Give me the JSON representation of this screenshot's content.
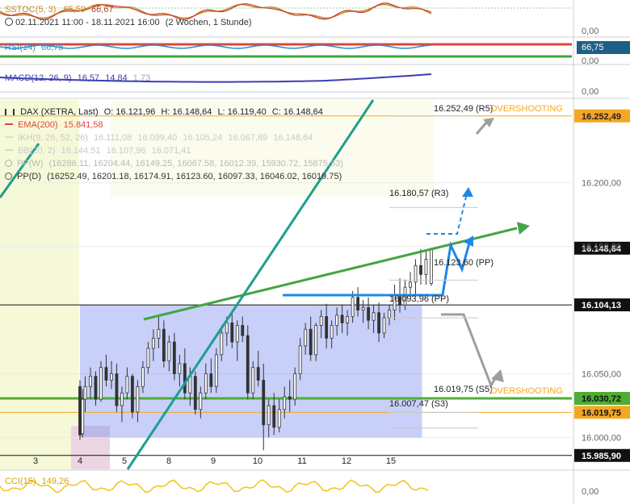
{
  "panels": {
    "sstoc": {
      "label": "SSTOC(5, 3)",
      "v1": "65,59",
      "v2": "66,67",
      "zero": "0,00",
      "line1_color": "#c98a2b",
      "line2_color": "#c0392b"
    },
    "period": {
      "text": "02.11.2021 11:00 - 18.11.2021 16:00",
      "interval": "(2 Wochen, 1 Stunde)"
    },
    "rsi": {
      "label": "RSI(14)",
      "value": "66,75",
      "badge": "66,75",
      "tick": "0,00",
      "color": "#2a8fc7",
      "upper_color": "#e0463a",
      "lower_color": "#3aa83a"
    },
    "macd": {
      "label": "MACD(12, 26, 9)",
      "v1": "16,57",
      "v2": "14,84",
      "v3": "1,73",
      "tick": "0,00",
      "color": "#3d3db3"
    },
    "cci": {
      "label": "CCI(15)",
      "value": "149,26",
      "tick": "0,00",
      "color": "#f0c419"
    }
  },
  "legend": {
    "instrument": "DAX (XETRA, Last)",
    "o": "O: 16.121,96",
    "h": "H: 16.148,64",
    "l": "L: 16.119,40",
    "c": "C: 16.148,64",
    "ema": "EMA(200)",
    "ema_val": "15.841,58",
    "ema_color": "#e0463a",
    "ikh": "IKH(9, 26, 52, 26)",
    "ikh_vals": [
      "16.111,08",
      "16.099,40",
      "16.105,24",
      "16.067,89",
      "16.148,64"
    ],
    "bb": "BB(20, 2)",
    "bb_vals": [
      "16.144,51",
      "16.107,96",
      "16.071,41"
    ],
    "ppw": "PP(W)",
    "ppw_vals": "(16286.11, 16204.44, 16149.25, 16067.58, 16012.39, 15930.72, 15875.53)",
    "ppd": "PP(D)",
    "ppd_vals": "(16252.49, 16201.18, 16174.91, 16123.60, 16097.33, 16046.02, 16019.75)"
  },
  "chart_data": {
    "type": "line",
    "title": "DAX (XETRA, Last)",
    "xlabel": "",
    "ylabel": "",
    "x_ticks": [
      "3",
      "4",
      "5",
      "8",
      "9",
      "10",
      "11",
      "12",
      "15"
    ],
    "y_ticks": [
      "16.200,00",
      "16.150,00",
      "16.050,00",
      "16.000,00"
    ],
    "ylim": [
      15975,
      16265
    ],
    "price_badges": [
      {
        "label": "16.252,49",
        "value": 16252.49,
        "bg": "#f5a623",
        "fg": "#222222"
      },
      {
        "label": "16.148,64",
        "value": 16148.64,
        "bg": "#111111",
        "fg": "#ffffff"
      },
      {
        "label": "16.104,13",
        "value": 16104.13,
        "bg": "#111111",
        "fg": "#ffffff"
      },
      {
        "label": "16.030,72",
        "value": 16030.72,
        "bg": "#4fad35",
        "fg": "#111111"
      },
      {
        "label": "16.019,75",
        "value": 16019.75,
        "bg": "#f5a623",
        "fg": "#111111"
      },
      {
        "label": "15.985,90",
        "value": 15985.9,
        "bg": "#111111",
        "fg": "#ffffff"
      }
    ],
    "pivot_levels": [
      {
        "label": "16.252,49 (R5)",
        "value": 16252.49
      },
      {
        "label": "16.180,57 (R3)",
        "value": 16180.57
      },
      {
        "label": "16.123,60 (PP)",
        "value": 16123.6
      },
      {
        "label": "16.093,96 (PP)",
        "value": 16093.96
      },
      {
        "label": "16.019,75 (S5)",
        "value": 16019.75
      },
      {
        "label": "16.007,47 (S3)",
        "value": 16007.47
      }
    ],
    "annotations": [
      "OVERSHOOTING",
      "OVERSHOOTING"
    ],
    "trend_lines": [
      {
        "name": "",
        "from": [
          4.5,
          16120
        ],
        "to": [
          16.3,
          16170
        ]
      },
      {
        "name": "",
        "from": [
          5.0,
          15965
        ],
        "to": [
          11.7,
          16265
        ]
      }
    ],
    "horizontal_lines": [
      {
        "value": 16104.13,
        "color": "#111111"
      },
      {
        "value": 16030.72,
        "color": "#4fad35"
      },
      {
        "value": 16019.75,
        "color": "#f5a623"
      },
      {
        "value": 15985.9,
        "color": "#111111"
      },
      {
        "value": 16252.49,
        "color": "#f5a623"
      }
    ],
    "rectangle": {
      "x_from": 4,
      "x_to": 15.7,
      "y_from": 16000,
      "y_to": 16104.13,
      "color": "#7b8ff0"
    },
    "candles": [
      [
        4.0,
        16040,
        16045,
        15998,
        16002
      ],
      [
        4.05,
        16003,
        16038,
        16000,
        16030
      ],
      [
        4.1,
        16030,
        16048,
        16020,
        16040
      ],
      [
        4.2,
        16040,
        16055,
        16030,
        16048
      ],
      [
        4.3,
        16048,
        16052,
        16025,
        16030
      ],
      [
        4.4,
        16030,
        16060,
        16028,
        16055
      ],
      [
        4.5,
        16055,
        16065,
        16040,
        16045
      ],
      [
        4.6,
        16045,
        16060,
        16038,
        16050
      ],
      [
        4.7,
        16050,
        16058,
        16020,
        16025
      ],
      [
        4.8,
        16025,
        16040,
        16012,
        16035
      ],
      [
        4.9,
        16035,
        16055,
        16030,
        16048
      ],
      [
        5.0,
        16048,
        16050,
        16015,
        16020
      ],
      [
        5.1,
        16020,
        16045,
        16012,
        16040
      ],
      [
        5.2,
        16040,
        16060,
        16035,
        16055
      ],
      [
        5.3,
        16055,
        16075,
        16050,
        16070
      ],
      [
        5.4,
        16070,
        16085,
        16060,
        16078
      ],
      [
        5.5,
        16078,
        16095,
        16070,
        16085
      ],
      [
        5.6,
        16085,
        16092,
        16055,
        16060
      ],
      [
        5.7,
        16060,
        16080,
        16052,
        16075
      ],
      [
        5.8,
        16075,
        16082,
        16045,
        16050
      ],
      [
        5.9,
        16050,
        16065,
        16040,
        16058
      ],
      [
        6.0,
        16058,
        16070,
        16030,
        16035
      ],
      [
        6.1,
        16035,
        16055,
        16025,
        16048
      ],
      [
        6.2,
        16048,
        16052,
        16018,
        16022
      ],
      [
        6.3,
        16022,
        16040,
        16015,
        16035
      ],
      [
        6.4,
        16035,
        16058,
        16030,
        16050
      ],
      [
        6.5,
        16050,
        16062,
        16035,
        16040
      ],
      [
        6.6,
        16040,
        16070,
        16035,
        16065
      ],
      [
        6.7,
        16065,
        16088,
        16060,
        16082
      ],
      [
        6.8,
        16082,
        16095,
        16072,
        16090
      ],
      [
        6.9,
        16090,
        16098,
        16070,
        16075
      ],
      [
        7.0,
        16075,
        16092,
        16060,
        16088
      ],
      [
        7.1,
        16088,
        16095,
        16075,
        16080
      ],
      [
        7.2,
        16080,
        16088,
        16030,
        16035
      ],
      [
        7.3,
        16035,
        16060,
        16030,
        16055
      ],
      [
        7.4,
        16055,
        16068,
        16040,
        16045
      ],
      [
        7.5,
        16045,
        16058,
        15990,
        16010
      ],
      [
        7.6,
        16010,
        16030,
        16000,
        16025
      ],
      [
        7.7,
        16025,
        16035,
        16002,
        16008
      ],
      [
        7.8,
        16008,
        16030,
        16004,
        16022
      ],
      [
        7.9,
        16022,
        16040,
        16015,
        16032
      ],
      [
        8.0,
        16032,
        16045,
        16020,
        16030
      ],
      [
        8.1,
        16030,
        16055,
        16025,
        16050
      ],
      [
        8.2,
        16050,
        16078,
        16045,
        16072
      ],
      [
        8.3,
        16072,
        16090,
        16065,
        16085
      ],
      [
        8.4,
        16085,
        16095,
        16060,
        16065
      ],
      [
        8.5,
        16065,
        16090,
        16060,
        16088
      ],
      [
        8.6,
        16088,
        16100,
        16078,
        16095
      ],
      [
        8.7,
        16095,
        16105,
        16070,
        16078
      ],
      [
        8.8,
        16078,
        16092,
        16070,
        16088
      ],
      [
        8.9,
        16088,
        16102,
        16080,
        16096
      ],
      [
        9.0,
        16096,
        16104,
        16082,
        16090
      ],
      [
        9.1,
        16090,
        16100,
        16080,
        16095
      ],
      [
        9.2,
        16095,
        16115,
        16090,
        16110
      ],
      [
        9.3,
        16110,
        16118,
        16095,
        16100
      ],
      [
        9.4,
        16100,
        16108,
        16090,
        16102
      ],
      [
        9.5,
        16102,
        16110,
        16085,
        16092
      ],
      [
        9.6,
        16092,
        16104,
        16082,
        16098
      ],
      [
        9.7,
        16098,
        16106,
        16075,
        16082
      ],
      [
        9.8,
        16082,
        16098,
        16078,
        16094
      ],
      [
        9.9,
        16094,
        16104,
        16088,
        16100
      ],
      [
        10.0,
        16100,
        16120,
        16092,
        16112
      ],
      [
        10.1,
        16112,
        16125,
        16098,
        16104
      ],
      [
        10.2,
        16104,
        16124,
        16100,
        16118
      ],
      [
        10.3,
        16118,
        16130,
        16110,
        16122
      ],
      [
        10.4,
        16122,
        16140,
        16112,
        16135
      ],
      [
        10.5,
        16135,
        16148,
        16120,
        16128
      ],
      [
        10.6,
        16128,
        16146,
        16120,
        16140
      ],
      [
        10.7,
        16121,
        16149,
        16119,
        16148
      ]
    ],
    "forecast_paths": [
      {
        "name": "",
        "points": [
          [
            15.0,
            16104
          ],
          [
            15.1,
            16104
          ],
          [
            15.25,
            16135
          ],
          [
            15.35,
            16115
          ],
          [
            15.5,
            16138
          ]
        ],
        "color": "#1e88e5"
      },
      {
        "name": "",
        "points": [
          [
            15.0,
            16082
          ],
          [
            15.4,
            16082
          ],
          [
            15.9,
            16023
          ],
          [
            16.05,
            16040
          ]
        ],
        "color": "#9e9e9e"
      },
      {
        "name": "",
        "points": [
          [
            15.9,
            16230
          ],
          [
            16.2,
            16245
          ]
        ],
        "color": "#9e9e9e"
      },
      {
        "name": "",
        "points": [
          [
            15.2,
            16160
          ],
          [
            15.55,
            16160
          ],
          [
            15.7,
            16188
          ]
        ],
        "color": "#1e88e5"
      }
    ]
  }
}
